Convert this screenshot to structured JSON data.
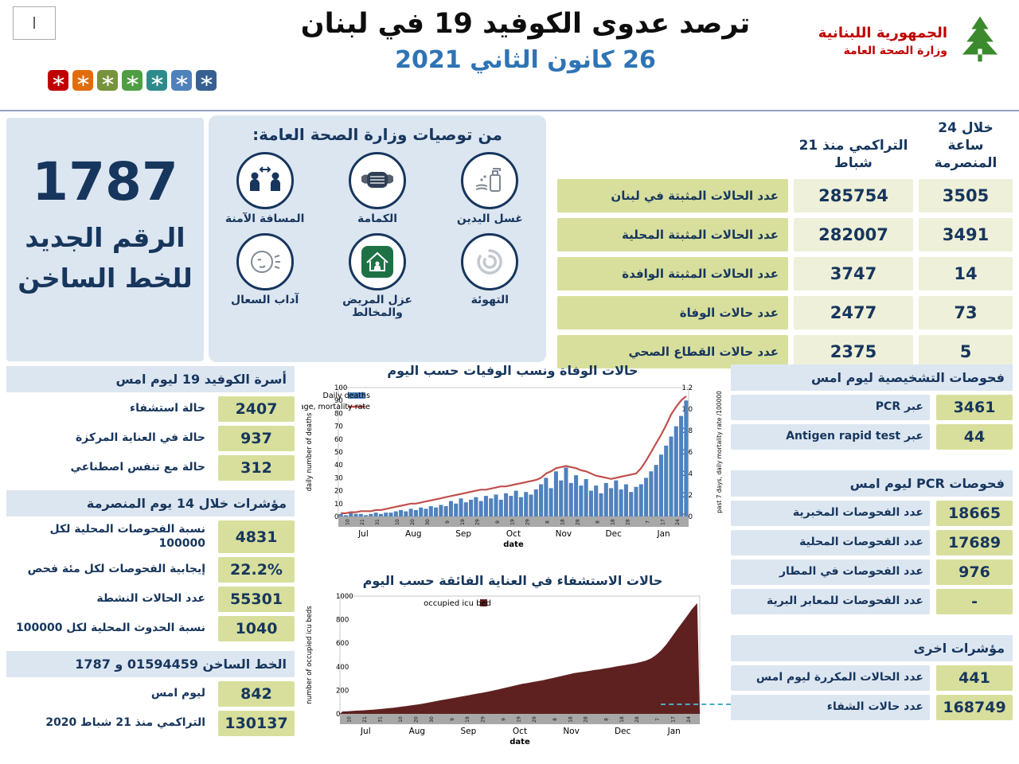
{
  "header": {
    "corner_letter": "ا",
    "title": "ترصد عدوى الكوفيد 19 في لبنان",
    "date": "26 كانون الثاني 2021",
    "logo_line1": "الجمهورية اللبنانية",
    "logo_line2": "وزارة الصحة العامة"
  },
  "decor": {
    "snowflake_colors": [
      "#c00000",
      "#e36c0a",
      "#77933c",
      "#4f9e44",
      "#2e8b8b",
      "#4f81bd",
      "#376092"
    ]
  },
  "hotline_box": {
    "number": "1787",
    "line1": "الرقم الجديد",
    "line2": "للخط الساخن"
  },
  "recommendations": {
    "title": "من توصيات وزارة الصحة العامة:",
    "items": [
      {
        "label": "غسل اليدين"
      },
      {
        "label": "الكمامة"
      },
      {
        "label": "المسافة الآمنة"
      },
      {
        "label": "التهوئة"
      },
      {
        "label": "عزل المريض والمخالط"
      },
      {
        "label": "آداب السعال"
      }
    ]
  },
  "main_table": {
    "col_24h": "خلال 24 ساعة المنصرمة",
    "col_cum": "التراكمي منذ 21 شباط",
    "rows": [
      {
        "label": "عدد الحالات المثبتة في لبنان",
        "cum": "285754",
        "h24": "3505"
      },
      {
        "label": "عدد الحالات المثبتة المحلية",
        "cum": "282007",
        "h24": "3491"
      },
      {
        "label": "عدد الحالات المثبتة الوافدة",
        "cum": "3747",
        "h24": "14"
      },
      {
        "label": "عدد حالات الوفاة",
        "cum": "2477",
        "h24": "73"
      },
      {
        "label": "عدد حالات القطاع الصحي",
        "cum": "2375",
        "h24": "5"
      }
    ]
  },
  "left_sections": [
    {
      "header": "أسرة الكوفيد 19 ليوم امس",
      "rows": [
        {
          "value": "2407",
          "label": "حالة استشفاء"
        },
        {
          "value": "937",
          "label": "حالة في العناية المركزة"
        },
        {
          "value": "312",
          "label": "حالة مع تنفس اصطناعي"
        }
      ]
    },
    {
      "header": "مؤشرات خلال 14 يوم المنصرمة",
      "rows": [
        {
          "value": "4831",
          "label": "نسبة الفحوصات المحلية لكل 100000"
        },
        {
          "value": "22.2%",
          "label": "إيجابية الفحوصات لكل مئة فحص"
        },
        {
          "value": "55301",
          "label": "عدد الحالات النشطة"
        },
        {
          "value": "1040",
          "label": "نسبة الحدوث المحلية لكل 100000"
        }
      ]
    },
    {
      "header": "الخط الساخن 01594459 و 1787",
      "rows": [
        {
          "value": "842",
          "label": "ليوم امس"
        },
        {
          "value": "130137",
          "label": "التراكمي منذ 21 شباط 2020"
        }
      ]
    }
  ],
  "right_sections": [
    {
      "header": "فحوصات التشخيصية ليوم امس",
      "rows": [
        {
          "value": "3461",
          "label": "عبر PCR"
        },
        {
          "value": "44",
          "label": "عبر Antigen rapid test"
        }
      ]
    },
    {
      "header": "فحوصات PCR ليوم امس",
      "rows": [
        {
          "value": "18665",
          "label": "عدد الفحوصات المخبرية"
        },
        {
          "value": "17689",
          "label": "عدد الفحوصات المحلية"
        },
        {
          "value": "976",
          "label": "عدد الفحوصات في المطار"
        },
        {
          "value": "-",
          "label": "عدد الفحوصات للمعابر البرية"
        }
      ]
    },
    {
      "header": "مؤشرات اخرى",
      "rows": [
        {
          "value": "441",
          "label": "عدد الحالات المكررة  ليوم امس"
        },
        {
          "value": "168749",
          "label": "عدد حالات الشفاء"
        }
      ]
    }
  ],
  "chart_data": [
    {
      "type": "bar",
      "title": "حالات الوفاة ونسب الوفيات حسب اليوم",
      "legend": [
        "Daily deaths",
        "Past 7 days, daily average, mortality rate"
      ],
      "ylabel_left": "daily number of deaths",
      "ylabel_right": "past 7 days, daily mortality rate /100000",
      "xlabel": "date",
      "ylim_left": [
        0,
        100
      ],
      "ylim_right": [
        0,
        1.2
      ],
      "months": [
        "Jul",
        "Aug",
        "Sep",
        "Oct",
        "Nov",
        "Dec",
        "Jan"
      ],
      "day_ticks": [
        "10",
        "21",
        "31",
        "10",
        "20",
        "30",
        "9",
        "19",
        "29",
        "9",
        "19",
        "29",
        "8",
        "18",
        "28",
        "8",
        "18",
        "28",
        "7",
        "17",
        "24"
      ],
      "bars": [
        2,
        1,
        3,
        2,
        2,
        1,
        2,
        3,
        2,
        3,
        3,
        4,
        5,
        4,
        6,
        5,
        7,
        6,
        8,
        7,
        9,
        8,
        12,
        10,
        14,
        11,
        13,
        15,
        12,
        16,
        14,
        17,
        13,
        18,
        16,
        20,
        15,
        19,
        17,
        21,
        25,
        30,
        22,
        35,
        28,
        38,
        26,
        32,
        24,
        29,
        20,
        24,
        18,
        26,
        22,
        28,
        21,
        25,
        19,
        23,
        25,
        30,
        35,
        40,
        48,
        55,
        62,
        70,
        78,
        90
      ],
      "line": [
        0.03,
        0.03,
        0.04,
        0.04,
        0.05,
        0.05,
        0.05,
        0.06,
        0.06,
        0.07,
        0.08,
        0.09,
        0.1,
        0.11,
        0.12,
        0.12,
        0.13,
        0.14,
        0.15,
        0.16,
        0.17,
        0.18,
        0.19,
        0.2,
        0.21,
        0.22,
        0.23,
        0.24,
        0.25,
        0.25,
        0.26,
        0.27,
        0.28,
        0.28,
        0.29,
        0.3,
        0.31,
        0.32,
        0.33,
        0.34,
        0.36,
        0.4,
        0.42,
        0.45,
        0.46,
        0.47,
        0.46,
        0.45,
        0.43,
        0.42,
        0.4,
        0.38,
        0.37,
        0.36,
        0.35,
        0.36,
        0.37,
        0.38,
        0.39,
        0.4,
        0.45,
        0.52,
        0.6,
        0.68,
        0.76,
        0.85,
        0.95,
        1.02,
        1.08,
        1.12
      ]
    },
    {
      "type": "area",
      "title": "حالات الاستشفاء في العناية الفائقة حسب اليوم",
      "legend": [
        "occupied icu bed"
      ],
      "ylabel": "number of occupied icu beds",
      "xlabel": "date",
      "ylim": [
        0,
        1000
      ],
      "months": [
        "Jul",
        "Aug",
        "Sep",
        "Oct",
        "Nov",
        "Dec",
        "Jan"
      ],
      "day_ticks": [
        "10",
        "21",
        "31",
        "10",
        "20",
        "30",
        "9",
        "19",
        "29",
        "9",
        "19",
        "29",
        "8",
        "18",
        "28",
        "8",
        "18",
        "28",
        "7",
        "17",
        "24"
      ],
      "values": [
        20,
        22,
        25,
        28,
        30,
        33,
        36,
        40,
        44,
        48,
        52,
        58,
        64,
        70,
        76,
        82,
        90,
        98,
        106,
        115,
        122,
        130,
        138,
        146,
        154,
        162,
        170,
        178,
        186,
        195,
        205,
        215,
        225,
        235,
        245,
        255,
        262,
        270,
        278,
        285,
        295,
        305,
        315,
        325,
        335,
        345,
        352,
        358,
        365,
        372,
        378,
        385,
        392,
        400,
        408,
        415,
        422,
        430,
        440,
        452,
        470,
        500,
        540,
        590,
        650,
        710,
        770,
        830,
        890,
        940
      ]
    }
  ],
  "colors": {
    "navy": "#17365d",
    "panel_blue": "#dce6f1",
    "olive": "#d8df9c",
    "pale_olive": "#eef0d9",
    "bar_blue": "#4f81bd",
    "line_red": "#c0504d",
    "icu_maroon": "#5f2120",
    "red_brand": "#c00000",
    "date_blue": "#2e74b5"
  }
}
